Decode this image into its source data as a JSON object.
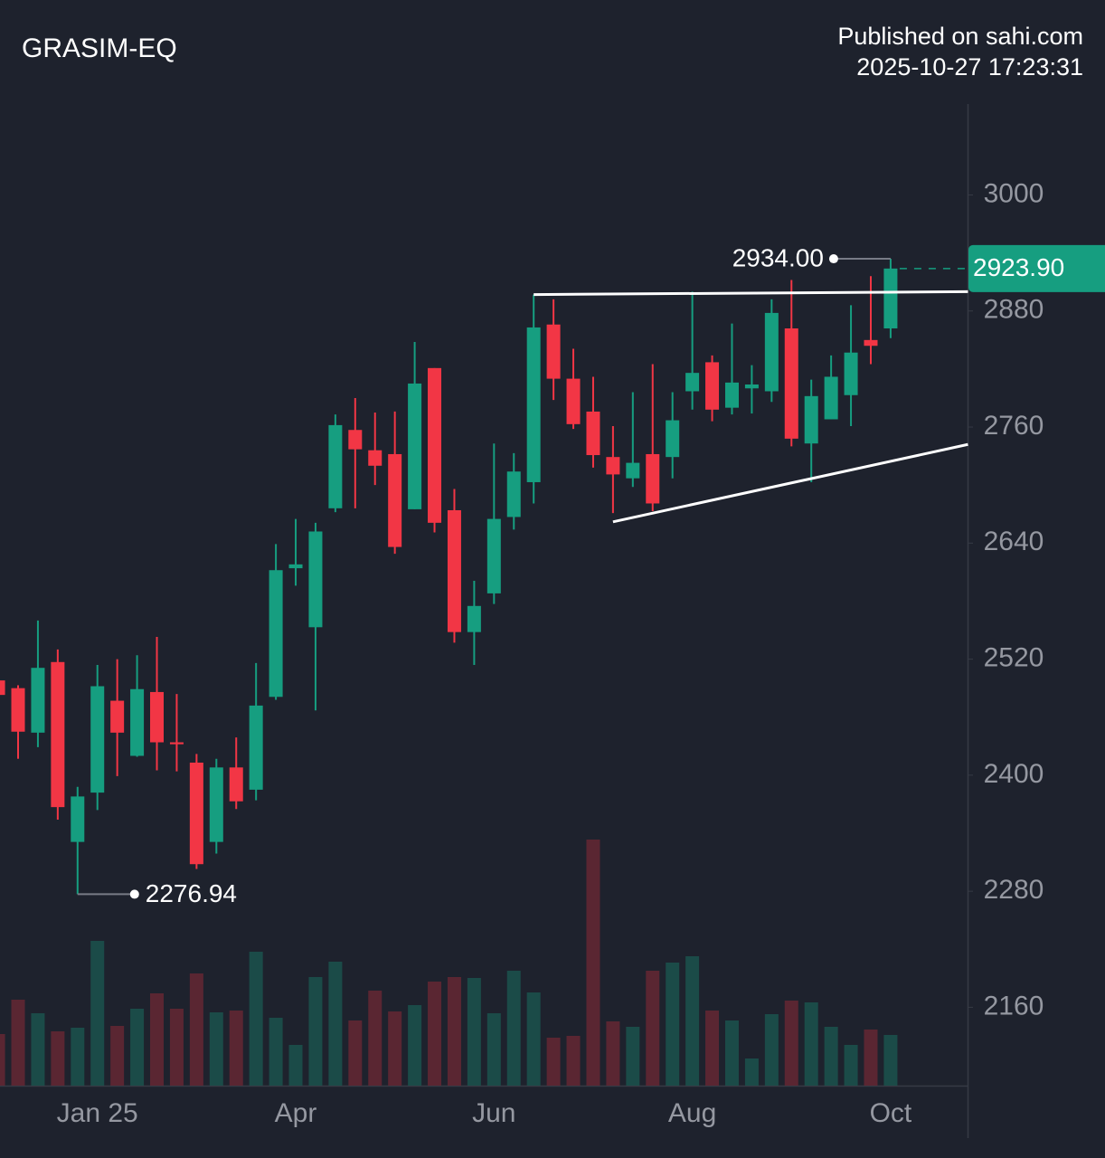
{
  "chart_data": {
    "type": "candlestick",
    "title": "GRASIM-EQ",
    "subtitle": [
      "Published on sahi.com",
      "2025-10-27 17:23:31"
    ],
    "categories": [
      null,
      null,
      null,
      null,
      null,
      "Jan 25",
      null,
      null,
      null,
      null,
      null,
      null,
      null,
      null,
      null,
      "Apr",
      null,
      null,
      null,
      null,
      null,
      null,
      null,
      null,
      null,
      "Jun",
      null,
      null,
      null,
      null,
      null,
      null,
      null,
      null,
      null,
      "Aug",
      null,
      null,
      null,
      null,
      null,
      null,
      null,
      null,
      null,
      "Oct"
    ],
    "open": [
      2498,
      2490,
      2444,
      2517,
      2331,
      2382,
      2477,
      2420,
      2486,
      2434,
      2413,
      2331,
      2408,
      2385,
      2481,
      2614,
      2553,
      2676,
      2757,
      2736,
      2732,
      2675,
      2821,
      2674,
      2548,
      2588,
      2667,
      2703,
      2866,
      2810,
      2776,
      2729,
      2707,
      2732,
      2729,
      2797,
      2827,
      2780,
      2800,
      2797,
      2862,
      2743,
      2768,
      2793,
      2850,
      2862
    ],
    "high": [
      2500,
      2493,
      2560,
      2530,
      2388,
      2514,
      2520,
      2524,
      2543,
      2484,
      2422,
      2417,
      2439,
      2516,
      2639,
      2665,
      2661,
      2773,
      2790,
      2775,
      2776,
      2848,
      2821,
      2696,
      2601,
      2743,
      2733,
      2897,
      2892,
      2841,
      2812,
      2761,
      2796,
      2825,
      2796,
      2900,
      2834,
      2867,
      2824,
      2892,
      2912,
      2809,
      2834,
      2886,
      2916,
      2934.0
    ],
    "low": [
      2481,
      2417,
      2429,
      2354,
      2276.94,
      2364,
      2399,
      2419,
      2405,
      2404,
      2303,
      2319,
      2365,
      2374,
      2478,
      2596,
      2467,
      2672,
      2676,
      2700,
      2629,
      2675,
      2651,
      2537,
      2514,
      2577,
      2654,
      2681,
      2788,
      2758,
      2718,
      2671,
      2698,
      2673,
      2707,
      2778,
      2766,
      2773,
      2774,
      2786,
      2740,
      2703,
      2768,
      2761,
      2825,
      2852
    ],
    "close": [
      2483,
      2445,
      2511,
      2367,
      2378,
      2492,
      2444,
      2489,
      2434,
      2432,
      2308,
      2408,
      2373,
      2472,
      2612,
      2618,
      2652,
      2762,
      2737,
      2720,
      2636,
      2805,
      2661,
      2548,
      2575,
      2665,
      2714,
      2863,
      2810,
      2763,
      2731,
      2711,
      2723,
      2681,
      2767,
      2816,
      2778,
      2806,
      2804,
      2878,
      2748,
      2792,
      2812,
      2837,
      2844,
      2923.9
    ],
    "volume": [
      57,
      95,
      80,
      60,
      64,
      160,
      66,
      85,
      102,
      85,
      124,
      81,
      83,
      148,
      75,
      45,
      120,
      137,
      72,
      105,
      82,
      89,
      115,
      120,
      119,
      80,
      127,
      103,
      53,
      55,
      272,
      71,
      65,
      127,
      136,
      143,
      83,
      72,
      30,
      79,
      94,
      92,
      65,
      45,
      62,
      56
    ],
    "ylim": [
      2079,
      3094
    ],
    "yticks": [
      2160,
      2280,
      2400,
      2520,
      2640,
      2760,
      2880,
      3000
    ],
    "grid": false,
    "up_color": "#169e80",
    "down_color": "#f23645",
    "volume_up_color": "#1b4b48",
    "volume_down_color": "#5a2632",
    "annotations": [
      {
        "index": 45,
        "value": 2934.0,
        "label": "2934.00"
      },
      {
        "index": 4,
        "value": 2276.94,
        "label": "2276.94"
      }
    ],
    "last_price": {
      "value": 2923.9,
      "label": "2923.90"
    },
    "trendlines": [
      {
        "x": [
          27,
          48.9
        ],
        "y": [
          2897,
          2900
        ]
      },
      {
        "x": [
          31,
          48.9
        ],
        "y": [
          2662,
          2742
        ]
      }
    ]
  }
}
